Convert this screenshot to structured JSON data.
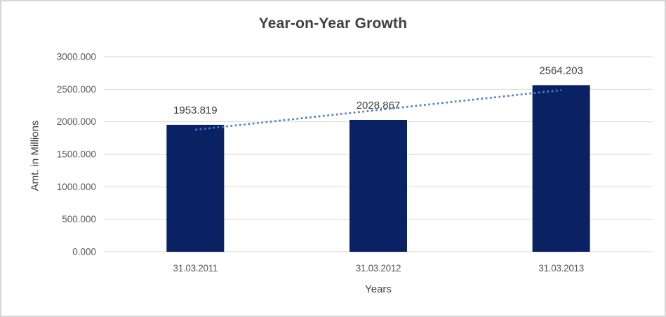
{
  "chart_data": {
    "type": "bar",
    "title": "Year-on-Year Growth",
    "xlabel": "Years",
    "ylabel": "Amt. in Millions",
    "categories": [
      "31.03.2011",
      "31.03.2012",
      "31.03.2013"
    ],
    "values": [
      1953.819,
      2028.867,
      2564.203
    ],
    "data_labels": [
      "1953.819",
      "2028.867",
      "2564.203"
    ],
    "series": [
      {
        "name": "Amt. in Millions",
        "values": [
          1953.819,
          2028.867,
          2564.203
        ]
      }
    ],
    "y_ticks": [
      0,
      500,
      1000,
      1500,
      2000,
      2500,
      3000
    ],
    "y_tick_labels": [
      "0.000",
      "500.000",
      "1000.000",
      "1500.000",
      "2000.000",
      "2500.000",
      "3000.000"
    ],
    "ylim": [
      0,
      3000
    ],
    "grid": true,
    "legend_position": "none",
    "trendline": {
      "type": "linear",
      "style": "dotted"
    },
    "colors": {
      "bar": "#0A2264",
      "trendline": "#4E80C6",
      "gridline": "#D9D9D9",
      "axis_text": "#595959",
      "label_text": "#404040",
      "title_text": "#404040",
      "background": "#FFFFFF",
      "border": "#D6D6D6"
    }
  }
}
